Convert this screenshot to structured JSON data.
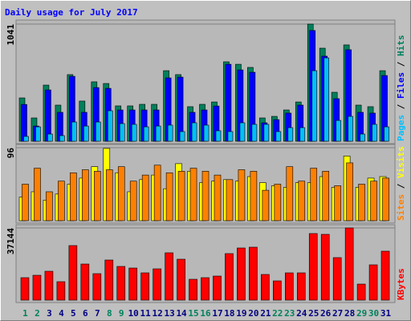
{
  "chart_data": [
    {
      "type": "bar",
      "title": "Daily usage for July 2017",
      "ylim": [
        0,
        1041
      ],
      "yticks": [
        1041
      ],
      "legend_separator": " / ",
      "series": [
        {
          "name": "Hits",
          "color": "#00805c",
          "values": [
            385,
            207,
            499,
            321,
            592,
            357,
            528,
            513,
            314,
            314,
            328,
            328,
            627,
            592,
            307,
            328,
            349,
            706,
            684,
            656,
            207,
            221,
            278,
            349,
            1041,
            827,
            435,
            856,
            321,
            307,
            627
          ]
        },
        {
          "name": "Files",
          "color": "#0000ff",
          "values": [
            327,
            135,
            456,
            257,
            577,
            257,
            477,
            470,
            278,
            278,
            278,
            278,
            563,
            570,
            257,
            278,
            313,
            684,
            634,
            613,
            164,
            192,
            250,
            321,
            984,
            756,
            378,
            813,
            257,
            250,
            584
          ]
        },
        {
          "name": "Pages",
          "color": "#00c0ff",
          "values": [
            43,
            128,
            64,
            50,
            171,
            135,
            171,
            271,
            157,
            150,
            128,
            135,
            143,
            86,
            164,
            143,
            93,
            86,
            164,
            150,
            150,
            86,
            121,
            121,
            627,
            741,
            185,
            221,
            64,
            150,
            128
          ]
        }
      ]
    },
    {
      "type": "bar",
      "ylim": [
        0,
        96
      ],
      "yticks": [
        96
      ],
      "legend_separator": " / ",
      "series": [
        {
          "name": "Visits",
          "color": "#ffff00",
          "values": [
            31,
            38,
            27,
            35,
            48,
            56,
            71,
            95,
            63,
            38,
            54,
            60,
            42,
            75,
            65,
            50,
            52,
            54,
            52,
            58,
            50,
            46,
            44,
            50,
            50,
            58,
            44,
            85,
            44,
            56,
            58
          ]
        },
        {
          "name": "Sites",
          "color": "#ff8000",
          "values": [
            48,
            69,
            38,
            52,
            63,
            67,
            65,
            67,
            71,
            52,
            60,
            73,
            63,
            65,
            69,
            65,
            60,
            54,
            67,
            65,
            40,
            48,
            71,
            52,
            69,
            65,
            46,
            76,
            48,
            52,
            56
          ]
        }
      ]
    },
    {
      "type": "bar",
      "ylim": [
        0,
        37144
      ],
      "yticks": [
        37144
      ],
      "categories": [
        "1",
        "2",
        "3",
        "4",
        "5",
        "6",
        "7",
        "8",
        "9",
        "10",
        "11",
        "12",
        "13",
        "14",
        "15",
        "16",
        "17",
        "18",
        "19",
        "20",
        "21",
        "22",
        "23",
        "24",
        "25",
        "26",
        "27",
        "28",
        "29",
        "30",
        "31"
      ],
      "category_colors": [
        "#00805c",
        "#00805c",
        "#000080",
        "#000080",
        "#000080",
        "#000080",
        "#000080",
        "#00805c",
        "#00805c",
        "#000080",
        "#000080",
        "#000080",
        "#000080",
        "#000080",
        "#00805c",
        "#00805c",
        "#000080",
        "#000080",
        "#000080",
        "#000080",
        "#000080",
        "#00805c",
        "#00805c",
        "#000080",
        "#000080",
        "#000080",
        "#000080",
        "#000080",
        "#00805c",
        "#00805c",
        "#000080"
      ],
      "series": [
        {
          "name": "KBytes",
          "color": "#ff0000",
          "values": [
            11556,
            12794,
            14857,
            9492,
            28064,
            18572,
            13619,
            20635,
            17334,
            16508,
            14032,
            16096,
            24350,
            21048,
            10730,
            11556,
            12381,
            23937,
            26826,
            27239,
            13206,
            9905,
            14032,
            14032,
            34254,
            33842,
            21873,
            37144,
            8254,
            18159,
            25175
          ]
        }
      ]
    }
  ]
}
